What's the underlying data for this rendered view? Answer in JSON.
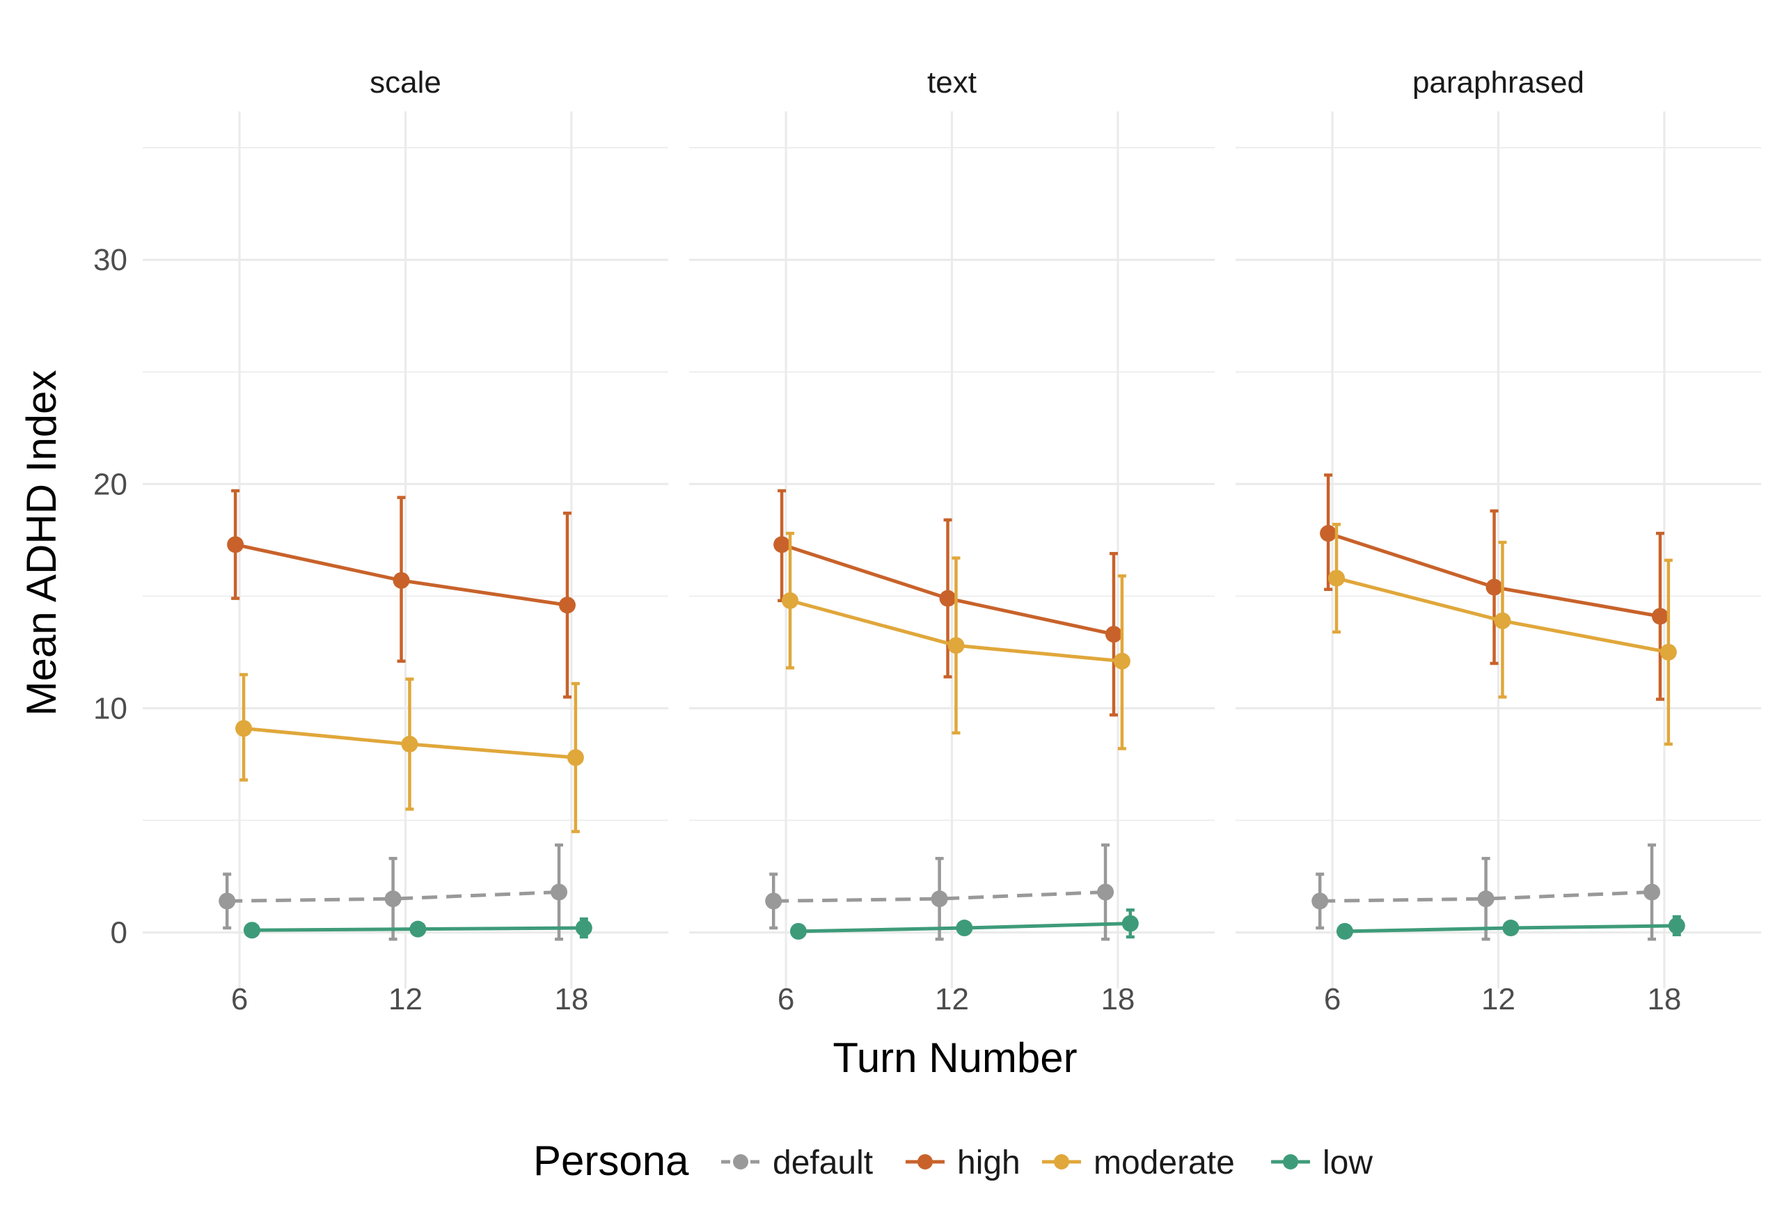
{
  "chart_data": {
    "type": "line",
    "title": "",
    "xlabel": "Turn Number",
    "ylabel": "Mean ADHD Index",
    "x": [
      6,
      12,
      18
    ],
    "xlim": [
      2.5,
      21.5
    ],
    "ylim": [
      -2.5,
      36
    ],
    "yticks": [
      0,
      10,
      20,
      30
    ],
    "ylim_minor": [
      5,
      15,
      25,
      35
    ],
    "legend": {
      "title": "Persona",
      "position": "bottom",
      "entries": [
        {
          "name": "default",
          "color": "#999999",
          "dash": true
        },
        {
          "name": "high",
          "color": "#C8622A",
          "dash": false
        },
        {
          "name": "moderate",
          "color": "#E0A73A",
          "dash": false
        },
        {
          "name": "low",
          "color": "#3E9B7A",
          "dash": false
        }
      ]
    },
    "panels": [
      {
        "name": "scale",
        "series": [
          {
            "name": "default",
            "dodge": -0.45,
            "values": [
              1.4,
              1.5,
              1.8
            ],
            "lower": [
              0.2,
              -0.3,
              -0.3
            ],
            "upper": [
              2.6,
              3.3,
              3.9
            ]
          },
          {
            "name": "high",
            "dodge": -0.15,
            "values": [
              17.3,
              15.7,
              14.6
            ],
            "lower": [
              14.9,
              12.1,
              10.5
            ],
            "upper": [
              19.7,
              19.4,
              18.7
            ]
          },
          {
            "name": "moderate",
            "dodge": 0.15,
            "values": [
              9.1,
              8.4,
              7.8
            ],
            "lower": [
              6.8,
              5.5,
              4.5
            ],
            "upper": [
              11.5,
              11.3,
              11.1
            ]
          },
          {
            "name": "low",
            "dodge": 0.45,
            "values": [
              0.1,
              0.15,
              0.2
            ],
            "lower": [
              0.1,
              0.15,
              -0.2
            ],
            "upper": [
              0.1,
              0.15,
              0.6
            ]
          }
        ]
      },
      {
        "name": "text",
        "series": [
          {
            "name": "default",
            "dodge": -0.45,
            "values": [
              1.4,
              1.5,
              1.8
            ],
            "lower": [
              0.2,
              -0.3,
              -0.3
            ],
            "upper": [
              2.6,
              3.3,
              3.9
            ]
          },
          {
            "name": "high",
            "dodge": -0.15,
            "values": [
              17.3,
              14.9,
              13.3
            ],
            "lower": [
              14.8,
              11.4,
              9.7
            ],
            "upper": [
              19.7,
              18.4,
              16.9
            ]
          },
          {
            "name": "moderate",
            "dodge": 0.15,
            "values": [
              14.8,
              12.8,
              12.1
            ],
            "lower": [
              11.8,
              8.9,
              8.2
            ],
            "upper": [
              17.8,
              16.7,
              15.9
            ]
          },
          {
            "name": "low",
            "dodge": 0.45,
            "values": [
              0.05,
              0.2,
              0.4
            ],
            "lower": [
              0.05,
              0.2,
              -0.2
            ],
            "upper": [
              0.05,
              0.2,
              1.0
            ]
          }
        ]
      },
      {
        "name": "paraphrased",
        "series": [
          {
            "name": "default",
            "dodge": -0.45,
            "values": [
              1.4,
              1.5,
              1.8
            ],
            "lower": [
              0.2,
              -0.3,
              -0.3
            ],
            "upper": [
              2.6,
              3.3,
              3.9
            ]
          },
          {
            "name": "high",
            "dodge": -0.15,
            "values": [
              17.8,
              15.4,
              14.1
            ],
            "lower": [
              15.3,
              12.0,
              10.4
            ],
            "upper": [
              20.4,
              18.8,
              17.8
            ]
          },
          {
            "name": "moderate",
            "dodge": 0.15,
            "values": [
              15.8,
              13.9,
              12.5
            ],
            "lower": [
              13.4,
              10.5,
              8.4
            ],
            "upper": [
              18.2,
              17.4,
              16.6
            ]
          },
          {
            "name": "low",
            "dodge": 0.45,
            "values": [
              0.05,
              0.2,
              0.3
            ],
            "lower": [
              0.05,
              0.2,
              -0.1
            ],
            "upper": [
              0.05,
              0.2,
              0.7
            ]
          }
        ]
      }
    ]
  }
}
